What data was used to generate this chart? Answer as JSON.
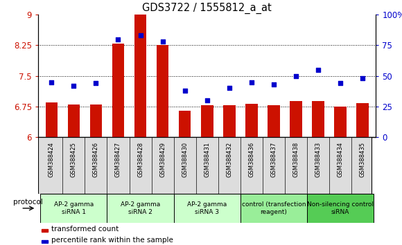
{
  "title": "GDS3722 / 1555812_a_at",
  "samples": [
    "GSM388424",
    "GSM388425",
    "GSM388426",
    "GSM388427",
    "GSM388428",
    "GSM388429",
    "GSM388430",
    "GSM388431",
    "GSM388432",
    "GSM388436",
    "GSM388437",
    "GSM388438",
    "GSM388433",
    "GSM388434",
    "GSM388435"
  ],
  "bar_values": [
    6.85,
    6.8,
    6.8,
    8.3,
    9.0,
    8.25,
    6.65,
    6.78,
    6.78,
    6.82,
    6.78,
    6.88,
    6.88,
    6.75,
    6.83
  ],
  "dot_values": [
    45,
    42,
    44,
    80,
    83,
    78,
    38,
    30,
    40,
    45,
    43,
    50,
    55,
    44,
    48
  ],
  "ylim": [
    6.0,
    9.0
  ],
  "yticks_left": [
    6.0,
    6.75,
    7.5,
    8.25,
    9.0
  ],
  "yticks_right": [
    0,
    25,
    50,
    75,
    100
  ],
  "bar_color": "#cc1100",
  "dot_color": "#0000cc",
  "groups": [
    {
      "label": "AP-2 gamma\nsiRNA 1",
      "indices": [
        0,
        1,
        2
      ],
      "color": "#ccffcc"
    },
    {
      "label": "AP-2 gamma\nsiRNA 2",
      "indices": [
        3,
        4,
        5
      ],
      "color": "#ccffcc"
    },
    {
      "label": "AP-2 gamma\nsiRNA 3",
      "indices": [
        6,
        7,
        8
      ],
      "color": "#ccffcc"
    },
    {
      "label": "control (transfection\nreagent)",
      "indices": [
        9,
        10,
        11
      ],
      "color": "#99ee99"
    },
    {
      "label": "Non-silencing control\nsiRNA",
      "indices": [
        12,
        13,
        14
      ],
      "color": "#66dd66"
    }
  ],
  "legend_bar_label": "transformed count",
  "legend_dot_label": "percentile rank within the sample",
  "protocol_label": "protocol"
}
